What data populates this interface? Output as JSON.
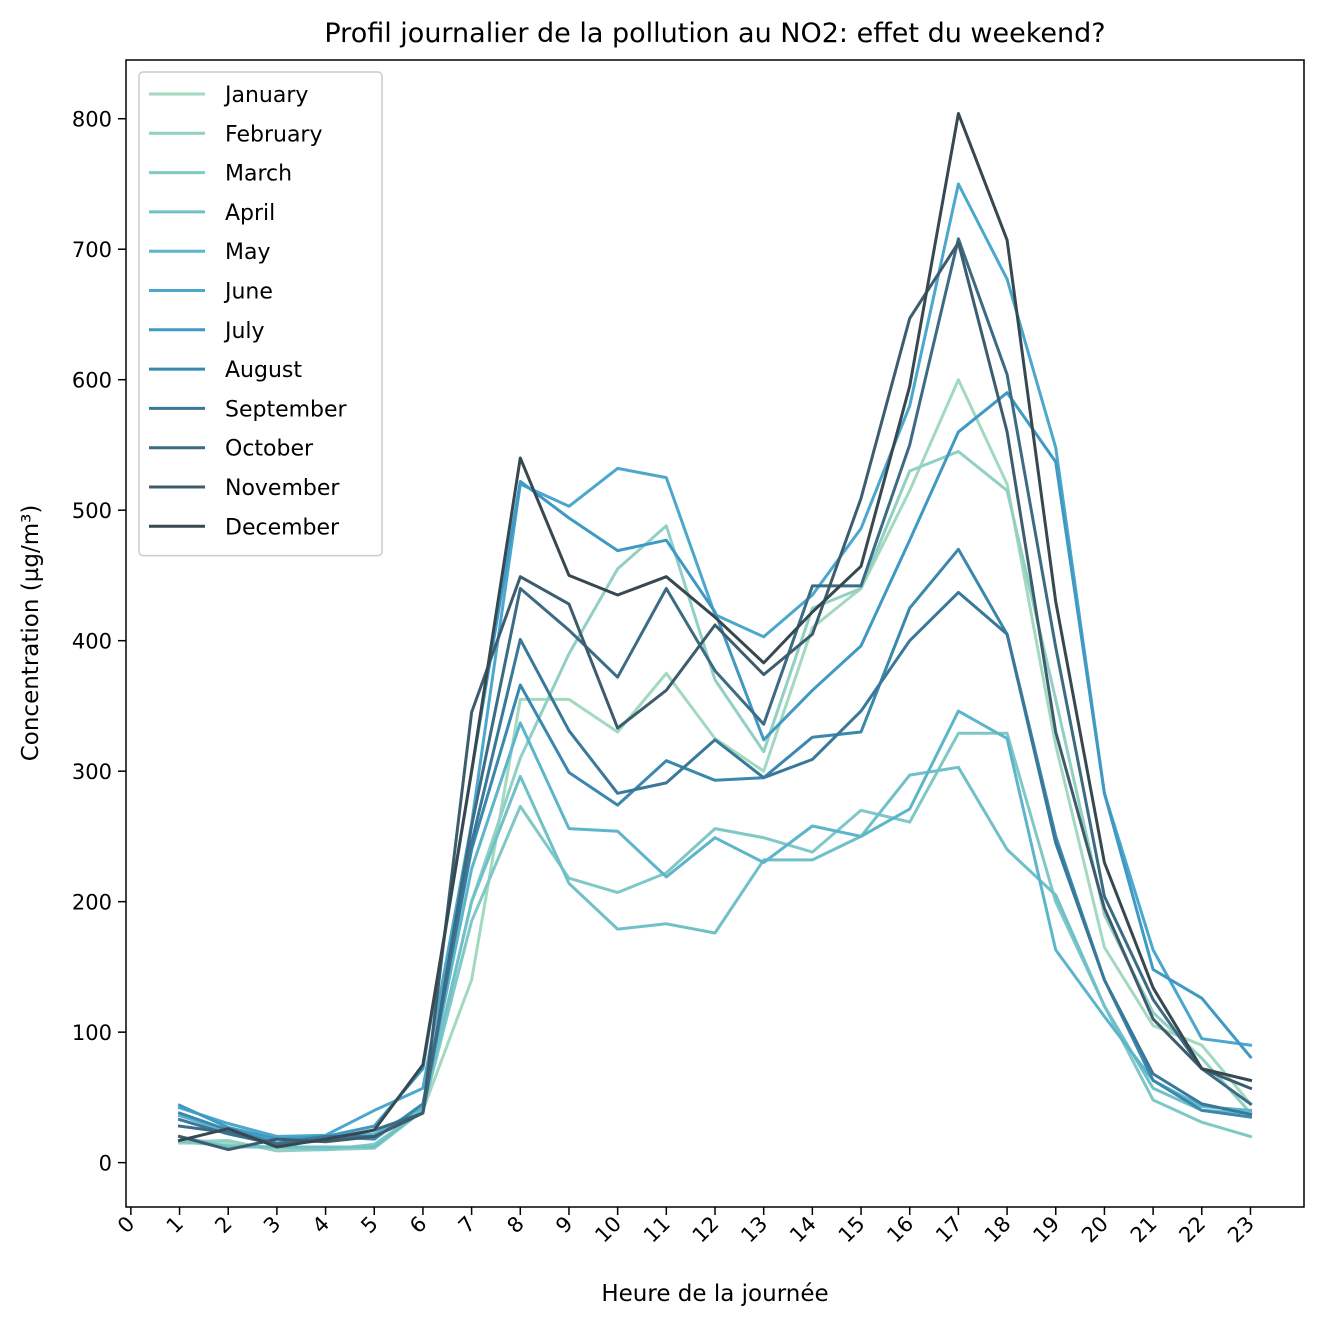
{
  "chart_data": {
    "type": "line",
    "title": "Profil journalier de la pollution au NO2: effet du weekend?",
    "xlabel": "Heure de la journée",
    "ylabel": "Concentration (µg/m³)",
    "x": [
      1,
      2,
      3,
      4,
      5,
      6,
      7,
      8,
      9,
      10,
      11,
      12,
      13,
      14,
      15,
      16,
      17,
      18,
      19,
      20,
      21,
      22,
      23
    ],
    "xticks": [
      0,
      1,
      2,
      3,
      4,
      5,
      6,
      7,
      8,
      9,
      10,
      11,
      12,
      13,
      14,
      15,
      16,
      17,
      18,
      19,
      20,
      21,
      22,
      23
    ],
    "yticks": [
      0,
      100,
      200,
      300,
      400,
      500,
      600,
      700,
      800
    ],
    "xlim": [
      -0.1,
      24.1
    ],
    "ylim": [
      -34,
      845
    ],
    "grid": false,
    "legend_position": "upper-left",
    "series": [
      {
        "name": "January",
        "color": "#a3d9bf",
        "values": [
          15,
          15,
          10,
          10,
          12,
          40,
          140,
          355,
          355,
          330,
          375,
          325,
          300,
          410,
          440,
          515,
          600,
          520,
          320,
          165,
          105,
          90,
          45
        ]
      },
      {
        "name": "February",
        "color": "#91d0c3",
        "values": [
          16,
          17,
          9,
          10,
          11,
          40,
          200,
          310,
          390,
          455,
          488,
          370,
          315,
          425,
          440,
          530,
          545,
          515,
          355,
          190,
          115,
          80,
          38
        ]
      },
      {
        "name": "March",
        "color": "#80c8c6",
        "values": [
          16,
          13,
          12,
          10,
          14,
          40,
          185,
          273,
          218,
          207,
          222,
          256,
          249,
          238,
          270,
          261,
          329,
          329,
          200,
          120,
          48,
          31,
          20
        ]
      },
      {
        "name": "April",
        "color": "#6fc0c8",
        "values": [
          20,
          12,
          12,
          12,
          12,
          40,
          200,
          296,
          214,
          179,
          183,
          176,
          232,
          232,
          250,
          297,
          303,
          240,
          205,
          120,
          57,
          40,
          38
        ]
      },
      {
        "name": "May",
        "color": "#5db5cb",
        "values": [
          36,
          24,
          18,
          18,
          22,
          42,
          225,
          337,
          256,
          254,
          219,
          249,
          230,
          258,
          250,
          271,
          346,
          325,
          163,
          112,
          63,
          43,
          40
        ]
      },
      {
        "name": "June",
        "color": "#4ba8cc",
        "values": [
          42,
          30,
          20,
          21,
          40,
          57,
          260,
          520,
          503,
          532,
          525,
          420,
          403,
          435,
          486,
          580,
          750,
          677,
          548,
          283,
          163,
          95,
          90
        ]
      },
      {
        "name": "July",
        "color": "#3f99c4",
        "values": [
          44,
          27,
          18,
          20,
          28,
          72,
          300,
          522,
          494,
          469,
          477,
          422,
          324,
          362,
          396,
          477,
          560,
          590,
          537,
          283,
          148,
          126,
          81
        ]
      },
      {
        "name": "August",
        "color": "#3a88ad",
        "values": [
          38,
          25,
          15,
          20,
          18,
          45,
          240,
          366,
          299,
          274,
          308,
          293,
          295,
          326,
          330,
          425,
          470,
          405,
          250,
          140,
          63,
          40,
          35
        ]
      },
      {
        "name": "September",
        "color": "#397899",
        "values": [
          33,
          22,
          14,
          20,
          20,
          38,
          245,
          401,
          331,
          283,
          291,
          324,
          295,
          309,
          346,
          400,
          437,
          405,
          245,
          140,
          68,
          45,
          37
        ]
      },
      {
        "name": "October",
        "color": "#3c6b84",
        "values": [
          28,
          23,
          14,
          17,
          25,
          38,
          258,
          440,
          408,
          372,
          440,
          377,
          336,
          442,
          442,
          550,
          708,
          604,
          395,
          204,
          125,
          72,
          45
        ]
      },
      {
        "name": "November",
        "color": "#3d5d6e",
        "values": [
          20,
          10,
          18,
          16,
          20,
          38,
          345,
          449,
          428,
          333,
          362,
          412,
          374,
          405,
          509,
          647,
          705,
          560,
          330,
          195,
          110,
          72,
          57
        ]
      },
      {
        "name": "December",
        "color": "#374850",
        "values": [
          17,
          26,
          12,
          18,
          25,
          75,
          300,
          540,
          450,
          435,
          449,
          418,
          383,
          422,
          457,
          595,
          804,
          707,
          430,
          230,
          134,
          72,
          63
        ]
      }
    ]
  }
}
